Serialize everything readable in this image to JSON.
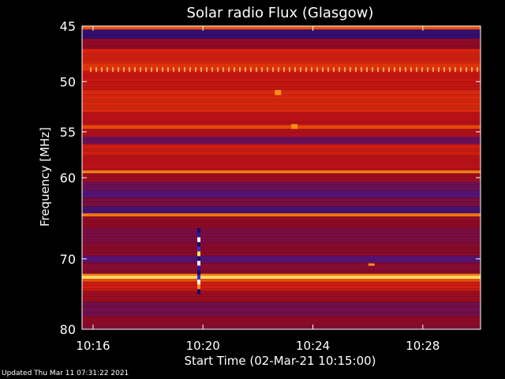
{
  "chart_data": {
    "type": "heatmap",
    "title": "Solar radio Flux (Glasgow)",
    "xlabel": "Start Time (02-Mar-21 10:15:00)",
    "ylabel": "Frequency [MHz]",
    "x_unit": "minutes after 10:15:00",
    "xlim": [
      0.6,
      15.1
    ],
    "ylim": [
      80,
      45
    ],
    "y_scale": "log",
    "x_ticks": [
      {
        "value": 1,
        "label": "10:16"
      },
      {
        "value": 5,
        "label": "10:20"
      },
      {
        "value": 9,
        "label": "10:24"
      },
      {
        "value": 13,
        "label": "10:28"
      }
    ],
    "y_ticks": [
      {
        "value": 45,
        "label": "45"
      },
      {
        "value": 50,
        "label": "50"
      },
      {
        "value": 55,
        "label": "55"
      },
      {
        "value": 60,
        "label": "60"
      },
      {
        "value": 70,
        "label": "70"
      },
      {
        "value": 80,
        "label": "80"
      }
    ],
    "colormap": [
      "#1a0a6e",
      "#5a1478",
      "#8c0a28",
      "#c81414",
      "#f03c0a",
      "#ff8c14",
      "#ffe650",
      "#ffffff"
    ],
    "frequency_bands": [
      {
        "f_from": 45.0,
        "f_to": 45.3,
        "level": 0.62
      },
      {
        "f_from": 45.3,
        "f_to": 46.1,
        "level": 0.06
      },
      {
        "f_from": 46.1,
        "f_to": 47.0,
        "level": 0.3
      },
      {
        "f_from": 47.0,
        "f_to": 48.3,
        "level": 0.48
      },
      {
        "f_from": 48.3,
        "f_to": 49.0,
        "level": 0.55
      },
      {
        "f_from": 49.0,
        "f_to": 50.8,
        "level": 0.44
      },
      {
        "f_from": 50.8,
        "f_to": 53.0,
        "level": 0.5
      },
      {
        "f_from": 53.0,
        "f_to": 54.3,
        "level": 0.4
      },
      {
        "f_from": 54.3,
        "f_to": 54.7,
        "level": 0.6
      },
      {
        "f_from": 54.7,
        "f_to": 55.5,
        "level": 0.38
      },
      {
        "f_from": 55.5,
        "f_to": 56.3,
        "level": 0.2
      },
      {
        "f_from": 56.3,
        "f_to": 57.6,
        "level": 0.46
      },
      {
        "f_from": 57.6,
        "f_to": 59.2,
        "level": 0.4
      },
      {
        "f_from": 59.2,
        "f_to": 59.5,
        "level": 0.72
      },
      {
        "f_from": 59.5,
        "f_to": 60.5,
        "level": 0.33
      },
      {
        "f_from": 60.5,
        "f_to": 61.5,
        "level": 0.2
      },
      {
        "f_from": 61.5,
        "f_to": 62.3,
        "level": 0.13
      },
      {
        "f_from": 62.3,
        "f_to": 63.4,
        "level": 0.24
      },
      {
        "f_from": 63.4,
        "f_to": 64.2,
        "level": 0.1
      },
      {
        "f_from": 64.2,
        "f_to": 64.6,
        "level": 0.68
      },
      {
        "f_from": 64.6,
        "f_to": 66.0,
        "level": 0.3
      },
      {
        "f_from": 66.0,
        "f_to": 68.0,
        "level": 0.24
      },
      {
        "f_from": 68.0,
        "f_to": 69.6,
        "level": 0.28
      },
      {
        "f_from": 69.6,
        "f_to": 70.5,
        "level": 0.15
      },
      {
        "f_from": 70.5,
        "f_to": 72.0,
        "level": 0.27
      },
      {
        "f_from": 72.0,
        "f_to": 72.3,
        "level": 0.7
      },
      {
        "f_from": 72.3,
        "f_to": 72.7,
        "level": 0.88
      },
      {
        "f_from": 72.7,
        "f_to": 73.1,
        "level": 0.62
      },
      {
        "f_from": 73.1,
        "f_to": 74.4,
        "level": 0.46
      },
      {
        "f_from": 74.4,
        "f_to": 76.0,
        "level": 0.33
      },
      {
        "f_from": 76.0,
        "f_to": 78.1,
        "level": 0.22
      },
      {
        "f_from": 78.1,
        "f_to": 79.5,
        "level": 0.3
      },
      {
        "f_from": 79.5,
        "f_to": 80.0,
        "level": 0.25
      }
    ],
    "features": [
      {
        "kind": "vertical-burst",
        "time": 4.85,
        "f_from": 66,
        "f_to": 74.8
      },
      {
        "kind": "spot",
        "time": 7.7,
        "f_from": 50.8,
        "f_to": 51.3
      },
      {
        "kind": "spot",
        "time": 8.3,
        "f_from": 54.2,
        "f_to": 54.7
      },
      {
        "kind": "spot",
        "time": 11.1,
        "f_from": 70.6,
        "f_to": 70.9
      }
    ],
    "grid": false,
    "legend": "none",
    "colors": {
      "background": "#000000",
      "text": "#ffffff",
      "axes": "#ffffff"
    }
  },
  "footer": {
    "updated": "Updated Thu Mar 11 07:31:22 2021"
  }
}
